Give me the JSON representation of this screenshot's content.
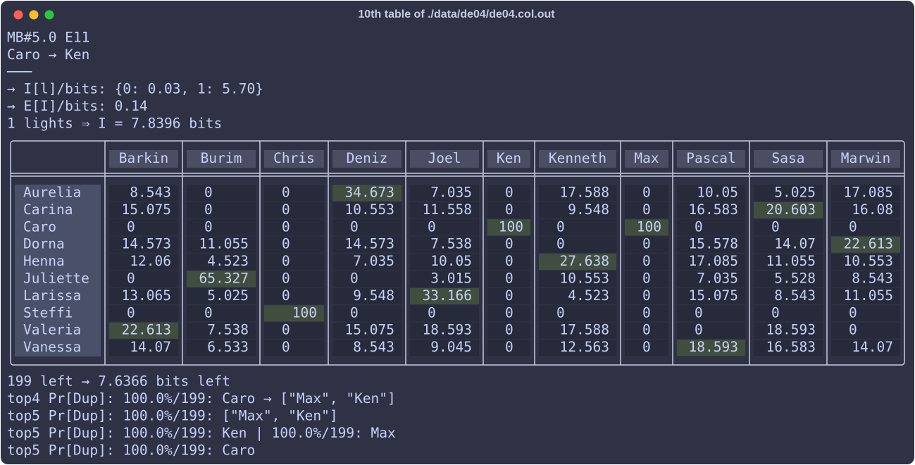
{
  "window": {
    "title": "10th table of ./data/de04/de04.col.out"
  },
  "lines": [
    "MB#5.0 E11",
    "Caro → Ken",
    "───",
    "→ I[l]/bits: {0: 0.03, 1: 5.70}",
    "→ E[I]/bits: 0.14",
    "1 lights ⇒ I = 7.8396 bits"
  ],
  "table": {
    "columns": [
      {
        "name": "Barkin",
        "color": "#c6d0f5"
      },
      {
        "name": "Burim",
        "color": "#c6d0f5"
      },
      {
        "name": "Chris",
        "color": "#a6d189"
      },
      {
        "name": "Deniz",
        "color": "#c6d0f5"
      },
      {
        "name": "Joel",
        "color": "#c6d0f5"
      },
      {
        "name": "Ken",
        "color": "#a6d189"
      },
      {
        "name": "Kenneth",
        "color": "#c6d0f5"
      },
      {
        "name": "Max",
        "color": "#a6d189"
      },
      {
        "name": "Pascal",
        "color": "#c6d0f5"
      },
      {
        "name": "Sasa",
        "color": "#c6d0f5"
      },
      {
        "name": "Marwin",
        "color": "#c6d0f5"
      }
    ],
    "rows": [
      {
        "name": "Aurelia",
        "color": "#c6d0f5",
        "values": [
          8.543,
          0,
          0,
          34.673,
          7.035,
          0,
          17.588,
          0,
          10.05,
          5.025,
          17.085
        ]
      },
      {
        "name": "Carina",
        "color": "#c6d0f5",
        "values": [
          15.075,
          0,
          0,
          10.553,
          11.558,
          0,
          9.548,
          0,
          16.583,
          20.603,
          16.08
        ]
      },
      {
        "name": "Caro",
        "color": "#a6d189",
        "values": [
          0,
          0,
          0,
          0,
          0,
          100,
          0,
          100,
          0,
          0,
          0
        ]
      },
      {
        "name": "Dorna",
        "color": "#c6d0f5",
        "values": [
          14.573,
          11.055,
          0,
          14.573,
          7.538,
          0,
          0,
          0,
          15.578,
          14.07,
          22.613
        ]
      },
      {
        "name": "Henna",
        "color": "#c6d0f5",
        "values": [
          12.06,
          4.523,
          0,
          7.035,
          10.05,
          0,
          27.638,
          0,
          17.085,
          11.055,
          10.553
        ]
      },
      {
        "name": "Juliette",
        "color": "#c6d0f5",
        "values": [
          0,
          65.327,
          0,
          0,
          3.015,
          0,
          10.553,
          0,
          7.035,
          5.528,
          8.543
        ]
      },
      {
        "name": "Larissa",
        "color": "#c6d0f5",
        "values": [
          13.065,
          5.025,
          0,
          9.548,
          33.166,
          0,
          4.523,
          0,
          15.075,
          8.543,
          11.055
        ]
      },
      {
        "name": "Steffi",
        "color": "#a6d189",
        "values": [
          0,
          0,
          100,
          0,
          0,
          0,
          0,
          0,
          0,
          0,
          0
        ]
      },
      {
        "name": "Valeria",
        "color": "#c6d0f5",
        "values": [
          22.613,
          7.538,
          0,
          15.075,
          18.593,
          0,
          17.588,
          0,
          0,
          18.593,
          0
        ]
      },
      {
        "name": "Vanessa",
        "color": "#c6d0f5",
        "values": [
          14.07,
          6.533,
          0,
          8.543,
          9.045,
          0,
          12.563,
          0,
          18.593,
          16.583,
          14.07
        ]
      }
    ]
  },
  "footer": [
    "199 left → 7.6366 bits left",
    "top4 Pr[Dup]: 100.0%/199: Caro → [\"Max\", \"Ken\"]",
    "top5 Pr[Dup]: 100.0%/199: [\"Max\", \"Ken\"]",
    "top5 Pr[Dup]: 100.0%/199: Ken | 100.0%/199: Max",
    "top5 Pr[Dup]: 100.0%/199: Caro"
  ]
}
